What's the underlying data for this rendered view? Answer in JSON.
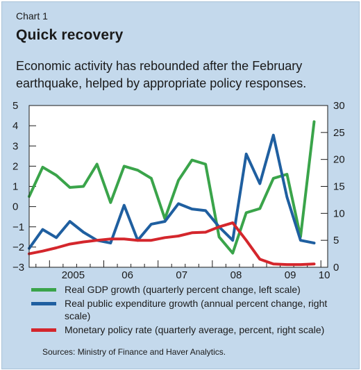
{
  "header": {
    "kicker": "Chart 1",
    "title": "Quick recovery",
    "subtitle": "Economic activity has rebounded after the February earthquake, helped by appropriate policy responses."
  },
  "chart_data": {
    "type": "line",
    "title": "Quick recovery",
    "x_ticks": [
      "2005",
      "06",
      "07",
      "08",
      "09",
      "10"
    ],
    "x_range": [
      2004.625,
      2010.125
    ],
    "left_axis": {
      "ylim": [
        -3,
        5
      ],
      "ticks": [
        "−3",
        "−2",
        "−1",
        "0",
        "1",
        "2",
        "3",
        "4",
        "5"
      ]
    },
    "right_axis": {
      "ylim": [
        0,
        30
      ],
      "ticks": [
        "0",
        "5",
        "10",
        "15",
        "20",
        "25",
        "30"
      ]
    },
    "grid": false,
    "legend_position": "bottom",
    "series": [
      {
        "name": "Real GDP growth (quarterly percent change, left scale)",
        "axis": "left",
        "color": "#3aa44a",
        "x": [
          2004.625,
          2004.875,
          2005.125,
          2005.375,
          2005.625,
          2005.875,
          2006.125,
          2006.375,
          2006.625,
          2006.875,
          2007.125,
          2007.375,
          2007.625,
          2007.875,
          2008.125,
          2008.375,
          2008.625,
          2008.875,
          2009.125,
          2009.375,
          2009.625,
          2009.875,
          2010.125
        ],
        "values": [
          0.5,
          1.95,
          1.55,
          0.95,
          1.0,
          2.1,
          0.2,
          2.0,
          1.8,
          1.4,
          -0.6,
          1.3,
          2.3,
          2.1,
          -1.5,
          -2.3,
          -0.3,
          -0.1,
          1.4,
          1.6,
          -1.5,
          4.2,
          null
        ]
      },
      {
        "name": "Real public expenditure growth (annual percent change, right scale)",
        "axis": "right",
        "color": "#1f5fa0",
        "x": [
          2004.625,
          2004.875,
          2005.125,
          2005.375,
          2005.625,
          2005.875,
          2006.125,
          2006.375,
          2006.625,
          2006.875,
          2007.125,
          2007.375,
          2007.625,
          2007.875,
          2008.125,
          2008.375,
          2008.625,
          2008.875,
          2009.125,
          2009.375,
          2009.625,
          2009.875,
          2010.125
        ],
        "values": [
          3.5,
          7.0,
          5.5,
          8.5,
          6.5,
          5.0,
          4.5,
          11.5,
          5.0,
          8.0,
          8.5,
          11.8,
          10.8,
          10.5,
          7.5,
          5.0,
          21.0,
          15.5,
          24.5,
          13.0,
          5.0,
          4.5,
          null
        ]
      },
      {
        "name": "Monetary policy rate (quarterly average, percent, right scale)",
        "axis": "right",
        "color": "#d4262c",
        "x": [
          2004.625,
          2004.875,
          2005.125,
          2005.375,
          2005.625,
          2005.875,
          2006.125,
          2006.375,
          2006.625,
          2006.875,
          2007.125,
          2007.375,
          2007.625,
          2007.875,
          2008.125,
          2008.375,
          2008.625,
          2008.875,
          2009.125,
          2009.375,
          2009.625,
          2009.875,
          2010.125
        ],
        "values": [
          2.5,
          3.0,
          3.6,
          4.3,
          4.7,
          5.0,
          5.25,
          5.25,
          5.0,
          5.0,
          5.5,
          5.8,
          6.4,
          6.5,
          7.5,
          8.25,
          5.0,
          1.5,
          0.6,
          0.5,
          0.5,
          0.6,
          null
        ]
      }
    ]
  },
  "source": "Sources: Ministry of Finance and Haver Analytics."
}
